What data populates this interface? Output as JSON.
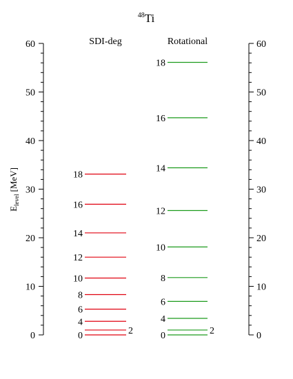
{
  "chart_data": {
    "type": "level-scheme",
    "title": "48Ti",
    "title_mass": "48",
    "title_element": "Ti",
    "ylabel_main": "E",
    "ylabel_sub": "level",
    "ylabel_unit": "[MeV]",
    "ylim": [
      0,
      60
    ],
    "yticks": [
      0,
      10,
      20,
      30,
      40,
      50,
      60
    ],
    "grid": false,
    "series": [
      {
        "name": "SDI-deg",
        "color": "#e0000f",
        "levels": [
          {
            "spin": "0",
            "energy": 0.0
          },
          {
            "spin": "2",
            "energy": 1.0
          },
          {
            "spin": "4",
            "energy": 2.8
          },
          {
            "spin": "6",
            "energy": 5.3
          },
          {
            "spin": "8",
            "energy": 8.3
          },
          {
            "spin": "10",
            "energy": 11.7
          },
          {
            "spin": "12",
            "energy": 16.0
          },
          {
            "spin": "14",
            "energy": 21.0
          },
          {
            "spin": "16",
            "energy": 26.9
          },
          {
            "spin": "18",
            "energy": 33.1
          }
        ]
      },
      {
        "name": "Rotational",
        "color": "#1a9a1a",
        "levels": [
          {
            "spin": "0",
            "energy": 0.0
          },
          {
            "spin": "2",
            "energy": 1.0
          },
          {
            "spin": "4",
            "energy": 3.4
          },
          {
            "spin": "6",
            "energy": 6.9
          },
          {
            "spin": "8",
            "energy": 11.8
          },
          {
            "spin": "10",
            "energy": 18.1
          },
          {
            "spin": "12",
            "energy": 25.6
          },
          {
            "spin": "14",
            "energy": 34.4
          },
          {
            "spin": "16",
            "energy": 44.7
          },
          {
            "spin": "18",
            "energy": 56.1
          }
        ]
      }
    ]
  }
}
